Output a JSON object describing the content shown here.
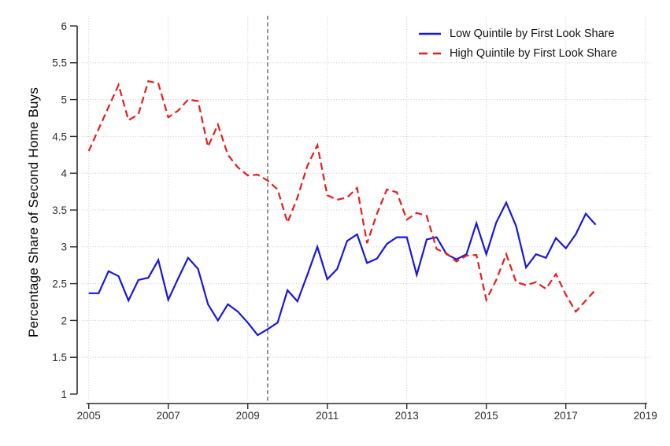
{
  "chart_data": {
    "type": "line",
    "title": "",
    "xlabel": "",
    "ylabel": "Percentage Share of Second Home Buys",
    "xlim": [
      2004.7,
      2019.3
    ],
    "ylim": [
      1,
      6
    ],
    "xticks": [
      2005,
      2007,
      2009,
      2011,
      2013,
      2015,
      2017,
      2019
    ],
    "yticks": [
      1,
      1.5,
      2,
      2.5,
      3,
      3.5,
      4,
      4.5,
      5,
      5.5,
      6
    ],
    "grid": true,
    "gridline_style": "dotted",
    "legend_position": "top-right-inside",
    "reference_line_x": 2009.5,
    "x_start": 2005,
    "x_step": 0.25,
    "x_unit": "quarterly",
    "colors": {
      "low_quintile": "#1717e0",
      "high_quintile": "#ea1c1c",
      "reference_line": "#5f5f5f",
      "gridline": "#c9c9c9",
      "axis": "#2b2b2b",
      "tick_label": "#303030"
    },
    "series": [
      {
        "name": "Low Quintile by First Look Share",
        "style": "solid",
        "color": "#1717e0",
        "values": [
          2.37,
          2.37,
          2.67,
          2.6,
          2.27,
          2.55,
          2.58,
          2.82,
          2.28,
          2.57,
          2.85,
          2.7,
          2.22,
          2.0,
          2.22,
          2.12,
          1.97,
          1.8,
          1.88,
          1.97,
          2.41,
          2.26,
          2.62,
          3.0,
          2.56,
          2.7,
          3.08,
          3.17,
          2.78,
          2.84,
          3.04,
          3.13,
          3.13,
          2.62,
          3.1,
          3.13,
          2.9,
          2.83,
          2.9,
          3.32,
          2.9,
          3.33,
          3.6,
          3.28,
          2.72,
          2.9,
          2.85,
          3.12,
          2.98,
          3.17,
          3.45,
          3.3
        ]
      },
      {
        "name": "High Quintile by First Look Share",
        "style": "dashed",
        "color": "#ea1c1c",
        "values": [
          4.3,
          4.6,
          4.9,
          5.2,
          4.72,
          4.8,
          5.25,
          5.22,
          4.76,
          4.85,
          5.0,
          4.98,
          4.36,
          4.66,
          4.25,
          4.08,
          3.97,
          3.98,
          3.9,
          3.78,
          3.33,
          3.67,
          4.1,
          4.38,
          3.7,
          3.64,
          3.67,
          3.8,
          3.05,
          3.45,
          3.78,
          3.74,
          3.37,
          3.46,
          3.42,
          2.97,
          2.91,
          2.8,
          2.88,
          2.89,
          2.28,
          2.55,
          2.9,
          2.52,
          2.48,
          2.52,
          2.43,
          2.63,
          2.35,
          2.12,
          2.27,
          2.42
        ]
      }
    ]
  }
}
